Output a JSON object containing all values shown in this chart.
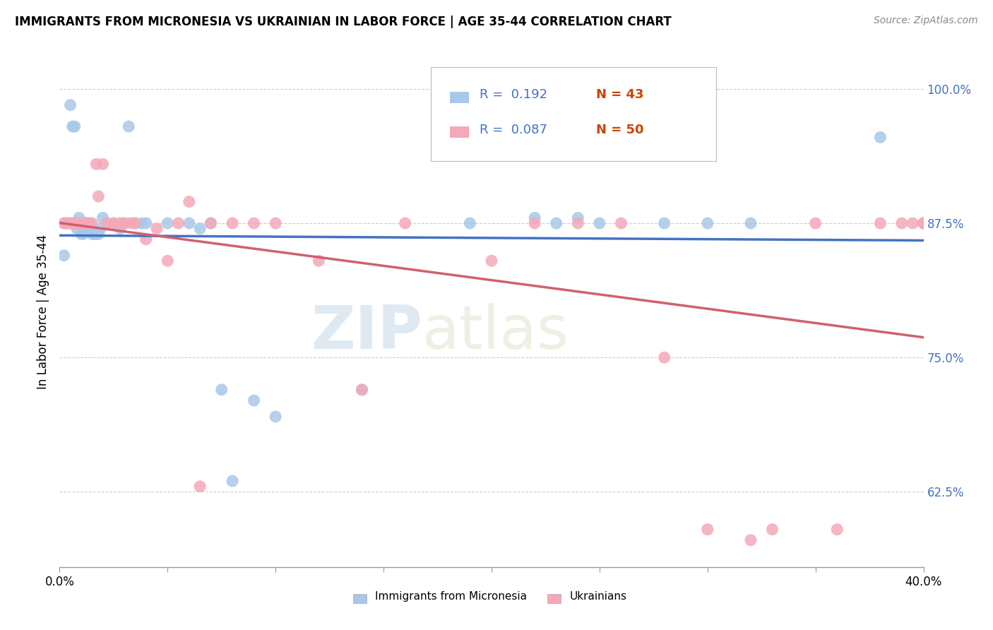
{
  "title": "IMMIGRANTS FROM MICRONESIA VS UKRAINIAN IN LABOR FORCE | AGE 35-44 CORRELATION CHART",
  "source_text": "Source: ZipAtlas.com",
  "ylabel": "In Labor Force | Age 35-44",
  "ytick_labels": [
    "62.5%",
    "75.0%",
    "87.5%",
    "100.0%"
  ],
  "ytick_values": [
    0.625,
    0.75,
    0.875,
    1.0
  ],
  "xlim": [
    0.0,
    0.4
  ],
  "ylim": [
    0.555,
    1.03
  ],
  "micronesia_x": [
    0.002,
    0.005,
    0.006,
    0.007,
    0.008,
    0.009,
    0.01,
    0.011,
    0.012,
    0.013,
    0.014,
    0.015,
    0.016,
    0.017,
    0.018,
    0.019,
    0.02,
    0.022,
    0.025,
    0.028,
    0.03,
    0.032,
    0.035,
    0.038,
    0.04,
    0.05,
    0.06,
    0.065,
    0.07,
    0.075,
    0.08,
    0.09,
    0.1,
    0.14,
    0.19,
    0.22,
    0.23,
    0.24,
    0.25,
    0.28,
    0.3,
    0.32,
    0.38
  ],
  "micronesia_y": [
    0.845,
    0.985,
    0.965,
    0.965,
    0.87,
    0.88,
    0.865,
    0.865,
    0.87,
    0.875,
    0.875,
    0.865,
    0.865,
    0.865,
    0.865,
    0.87,
    0.88,
    0.875,
    0.875,
    0.87,
    0.875,
    0.965,
    0.875,
    0.875,
    0.875,
    0.875,
    0.875,
    0.87,
    0.875,
    0.72,
    0.635,
    0.71,
    0.695,
    0.72,
    0.875,
    0.88,
    0.875,
    0.88,
    0.875,
    0.875,
    0.875,
    0.875,
    0.955
  ],
  "ukrainian_x": [
    0.002,
    0.003,
    0.004,
    0.005,
    0.006,
    0.007,
    0.008,
    0.009,
    0.01,
    0.011,
    0.012,
    0.013,
    0.015,
    0.017,
    0.018,
    0.02,
    0.022,
    0.025,
    0.028,
    0.03,
    0.033,
    0.035,
    0.04,
    0.045,
    0.05,
    0.055,
    0.06,
    0.065,
    0.07,
    0.08,
    0.09,
    0.1,
    0.12,
    0.14,
    0.16,
    0.2,
    0.22,
    0.24,
    0.26,
    0.28,
    0.3,
    0.32,
    0.33,
    0.35,
    0.36,
    0.38,
    0.39,
    0.395,
    0.4,
    0.4
  ],
  "ukrainian_y": [
    0.875,
    0.875,
    0.875,
    0.875,
    0.875,
    0.875,
    0.875,
    0.875,
    0.875,
    0.875,
    0.875,
    0.875,
    0.875,
    0.93,
    0.9,
    0.93,
    0.875,
    0.875,
    0.875,
    0.875,
    0.875,
    0.875,
    0.86,
    0.87,
    0.84,
    0.875,
    0.895,
    0.63,
    0.875,
    0.875,
    0.875,
    0.875,
    0.84,
    0.72,
    0.875,
    0.84,
    0.875,
    0.875,
    0.875,
    0.75,
    0.59,
    0.58,
    0.59,
    0.875,
    0.59,
    0.875,
    0.875,
    0.875,
    0.875,
    0.875
  ],
  "micronesia_R": 0.192,
  "micronesia_N": 43,
  "ukrainian_R": 0.087,
  "ukrainian_N": 50,
  "micronesia_color": "#a8c8e8",
  "ukrainian_color": "#f4a8b8",
  "micronesia_line_color": "#4472c4",
  "ukrainian_line_color": "#d06070",
  "legend_label_micronesia": "Immigrants from Micronesia",
  "legend_label_ukrainian": "Ukrainians",
  "watermark_zip": "ZIP",
  "watermark_atlas": "atlas",
  "background_color": "#ffffff",
  "grid_color": "#cccccc"
}
